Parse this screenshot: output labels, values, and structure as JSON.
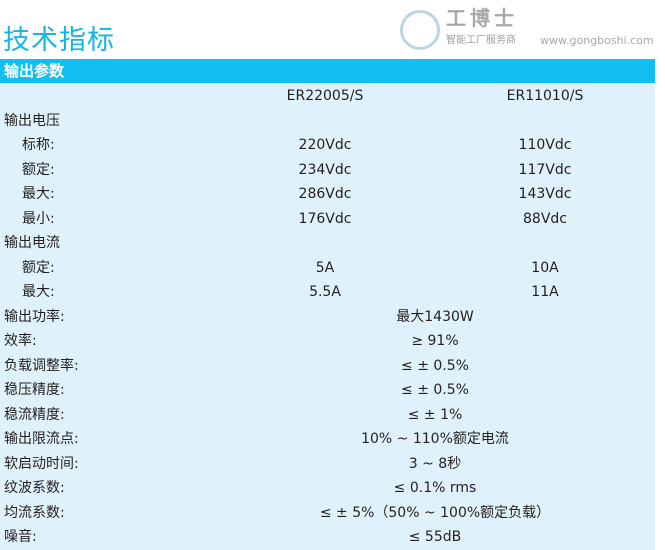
{
  "title": "技术指标",
  "section": "输出参数",
  "models": [
    "ER22005/S",
    "ER11010/S"
  ],
  "rows": [
    {
      "label": "输出电压",
      "sub": false,
      "v1": "",
      "v2": ""
    },
    {
      "label": "标称:",
      "sub": true,
      "v1": "220Vdc",
      "v2": "110Vdc"
    },
    {
      "label": "额定:",
      "sub": true,
      "v1": "234Vdc",
      "v2": "117Vdc"
    },
    {
      "label": "最大:",
      "sub": true,
      "v1": "286Vdc",
      "v2": "143Vdc"
    },
    {
      "label": "最小:",
      "sub": true,
      "v1": "176Vdc",
      "v2": "88Vdc"
    },
    {
      "label": "输出电流",
      "sub": false,
      "v1": "",
      "v2": ""
    },
    {
      "label": "额定:",
      "sub": true,
      "v1": "5A",
      "v2": "10A"
    },
    {
      "label": "最大:",
      "sub": true,
      "v1": "5.5A",
      "v2": "11A"
    },
    {
      "label": "输出功率:",
      "sub": false,
      "merged": "最大1430W"
    },
    {
      "label": "效率:",
      "sub": false,
      "merged": "≥ 91%"
    },
    {
      "label": "负载调整率:",
      "sub": false,
      "merged": "≤ ± 0.5%"
    },
    {
      "label": "稳压精度:",
      "sub": false,
      "merged": "≤ ± 0.5%"
    },
    {
      "label": "稳流精度:",
      "sub": false,
      "merged": "≤ ± 1%"
    },
    {
      "label": "输出限流点:",
      "sub": false,
      "merged": "10% ~ 110%额定电流"
    },
    {
      "label": "软启动时间:",
      "sub": false,
      "merged": "3 ~ 8秒"
    },
    {
      "label": "纹波系数:",
      "sub": false,
      "merged": "≤ 0.1% rms"
    },
    {
      "label": "均流系数:",
      "sub": false,
      "merged": "≤ ± 5%（50% ~ 100%额定负载）"
    },
    {
      "label": "噪音:",
      "sub": false,
      "merged": "≤ 55dB"
    }
  ],
  "watermark": {
    "name": "工博士",
    "slogan": "智能工厂服务商",
    "url": "www.gongboshi.com"
  },
  "colors": {
    "title": "#17b4e8",
    "bar": "#12bff2",
    "table_bg": "#dff2fb"
  }
}
